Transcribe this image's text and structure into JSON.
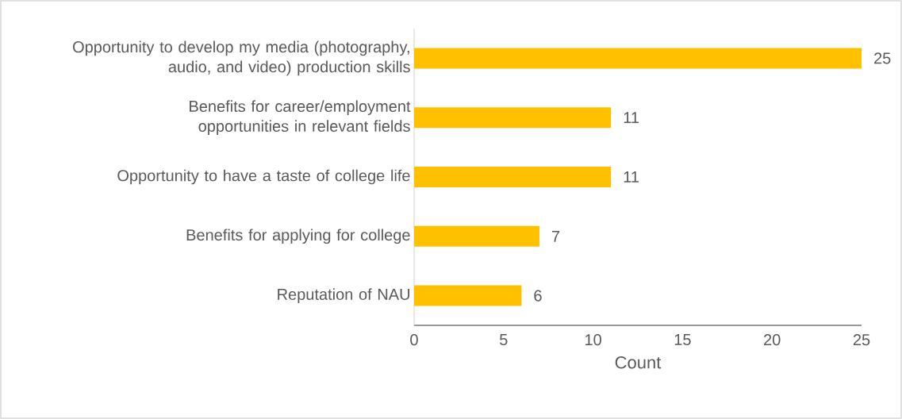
{
  "chart_data": {
    "type": "bar",
    "orientation": "horizontal",
    "categories": [
      "Opportunity to develop my media (photography, audio, and video) production skills",
      "Benefits for career/employment opportunities in relevant fields",
      "Opportunity to have a taste of college life",
      "Benefits for applying for college",
      "Reputation of NAU"
    ],
    "values": [
      25,
      11,
      11,
      7,
      6
    ],
    "color": "#ffc000",
    "xlabel": "Count",
    "xlim": [
      0,
      25
    ],
    "xticks": [
      0,
      5,
      10,
      15,
      20,
      25
    ],
    "data_labels": true
  }
}
